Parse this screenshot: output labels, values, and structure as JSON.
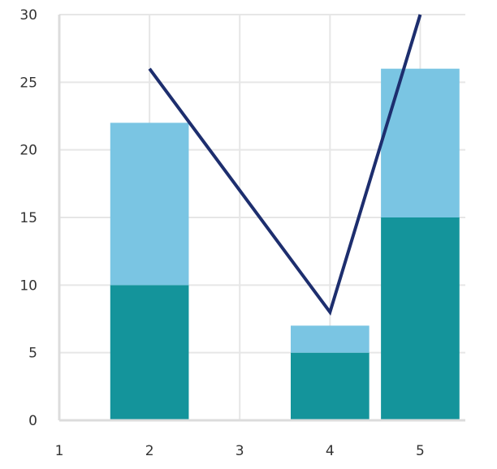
{
  "chart_data": {
    "type": "bar",
    "stacked": true,
    "x": [
      2,
      4,
      5
    ],
    "series": [
      {
        "type": "bar",
        "values": [
          10,
          5,
          15
        ],
        "color": "#14949b"
      },
      {
        "type": "bar",
        "values": [
          12,
          2,
          11
        ],
        "color": "#7ac5e3"
      },
      {
        "type": "line",
        "values": [
          26,
          8,
          30
        ],
        "color": "#1d2e6e"
      }
    ],
    "xlim": [
      1,
      5.5
    ],
    "ylim": [
      0,
      30
    ],
    "xticks": [
      "1",
      "2",
      "3",
      "4",
      "5"
    ],
    "yticks": [
      "0",
      "5",
      "10",
      "15",
      "20",
      "25",
      "30"
    ],
    "bar_width": 0.87,
    "grid": true,
    "title": "",
    "xlabel": "",
    "ylabel": ""
  }
}
